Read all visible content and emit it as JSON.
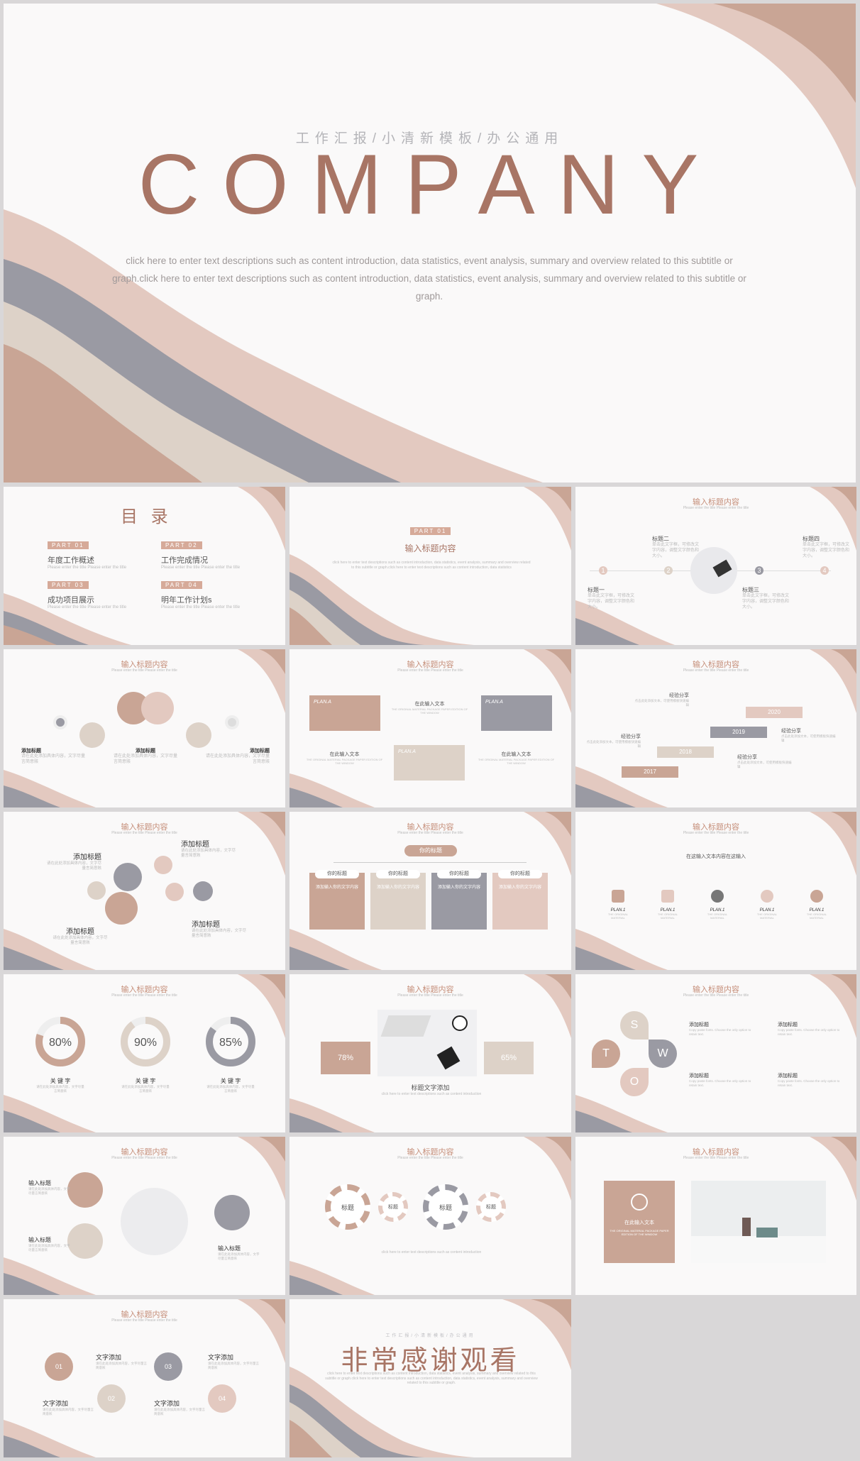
{
  "cover": {
    "subtitle": "工作汇报/小清新模板/办公通用",
    "title": "COMPANY",
    "desc": "click here to enter text descriptions such as content introduction, data statistics, event analysis, summary and overview related to this subtitle or graph.click here to enter text descriptions such as content introduction, data statistics, event analysis, summary and overview related to this subtitle or graph."
  },
  "common": {
    "heading": "输入标题内容",
    "subheading": "Please enter the title Please enter the title",
    "placeholder": "click here to enter text descriptions such as content introduction"
  },
  "toc": {
    "title": "目 录",
    "items": [
      {
        "part": "PART 01",
        "label": "年度工作概述",
        "sub": "Please enter the title Please enter the title"
      },
      {
        "part": "PART 02",
        "label": "工作完成情况",
        "sub": "Please enter the title Please enter the title"
      },
      {
        "part": "PART 03",
        "label": "成功项目展示",
        "sub": "Please enter the title Please enter the title"
      },
      {
        "part": "PART 04",
        "label": "明年工作计划s",
        "sub": "Please enter the title Please enter the title"
      }
    ]
  },
  "section": {
    "badge": "PART 01",
    "title": "输入标题内容",
    "desc": "click here to enter text descriptions such as content introduction, data statistics, event analysis, summary and overview related to this subtitle or graph.click here to enter text descriptions such as content introduction, data statistics"
  },
  "timeline": {
    "labels": [
      "标题一",
      "标题二",
      "标题三",
      "标题四"
    ],
    "nums": [
      "1",
      "2",
      "3",
      "4"
    ],
    "text": "单击此文字框，可修改文字内容，调整文字颜色和大小。"
  },
  "circles": {
    "items": [
      "添加标题",
      "添加标题",
      "添加标题"
    ],
    "text": "请在此处添加具体内容，文字尽量言简意赅"
  },
  "plans": {
    "plan": "PLAN.A",
    "enter": "在此输入文本",
    "text": "THE ORIGINAL MATERIAL PACKAGE PAPER EDITION OF THE WINDOW"
  },
  "stairs": {
    "years": [
      "2017",
      "2018",
      "2019",
      "2020"
    ],
    "label": "经验分享",
    "text": "点击此处添加文本，可使用模板快速编辑"
  },
  "tree": {
    "root": "你的标题",
    "items": [
      "你的标题",
      "你的标题",
      "你的标题",
      "你的标题"
    ],
    "text": "添加输入你的文字内容"
  },
  "plan1": {
    "head": "在这输入文本内容在这输入",
    "items": [
      "PLAN.1",
      "PLAN.1",
      "PLAN.1",
      "PLAN.1",
      "PLAN.1"
    ],
    "sub": "THE ORIGINAL MATERIAL"
  },
  "donuts": {
    "values": [
      80,
      90,
      85
    ],
    "labels": [
      "关 键 字",
      "关 键 字",
      "关 键 字"
    ]
  },
  "photo": {
    "left": "78%",
    "right": "65%",
    "caption": "标题文字添加"
  },
  "swot": {
    "letters": [
      "S",
      "W",
      "O",
      "T"
    ],
    "items": [
      "添加标题",
      "添加标题",
      "添加标题",
      "添加标题"
    ],
    "text": "Copy paste fonts. Choose the only option to retain text."
  },
  "arrows": {
    "labels": [
      "输入标题",
      "输入标题",
      "输入标题"
    ]
  },
  "gears": {
    "labels": [
      "标题",
      "标题",
      "标题",
      "标题"
    ]
  },
  "card": {
    "title": "在此输入文本"
  },
  "numbered": {
    "nums": [
      "01",
      "02",
      "03",
      "04"
    ],
    "label": "文字添加"
  },
  "end": {
    "subtitle": "工作汇报/小清新模板/办公通用",
    "title": "非常感谢观看"
  },
  "colors": {
    "brown": "#a87565",
    "pink": "#e3c9c0",
    "tan": "#c9a595",
    "gray": "#9a9aa3",
    "beige": "#ddd2c8"
  }
}
